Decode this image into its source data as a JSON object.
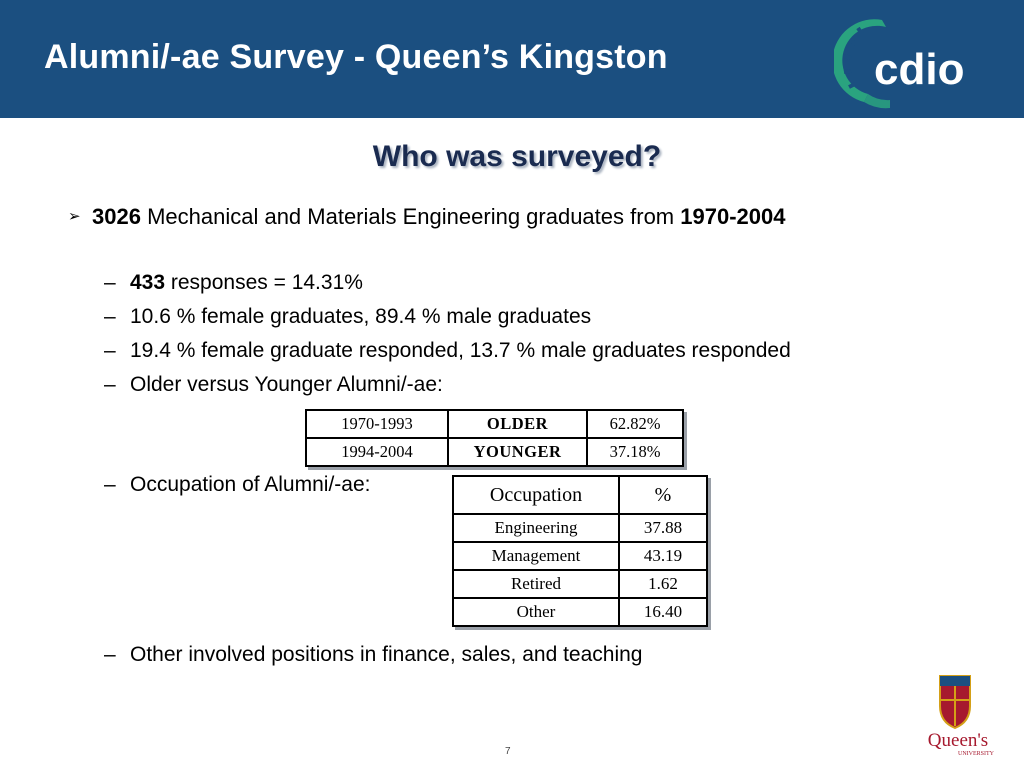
{
  "header": {
    "title": "Alumni/-ae Survey - Queen’s Kingston",
    "logo_text": "cdio"
  },
  "slide": {
    "subtitle": "Who was surveyed?",
    "main_bullet": {
      "count": "3026",
      "text": " Mechanical and Materials Engineering graduates from ",
      "years": "1970-2004"
    },
    "sub_bullets": [
      {
        "bold": "433",
        "text": " responses = 14.31%"
      },
      {
        "bold": "",
        "text": "10.6 % female graduates, 89.4 % male graduates"
      },
      {
        "bold": "",
        "text": "19.4 % female graduate responded, 13.7 % male graduates responded"
      },
      {
        "bold": "",
        "text": "Older versus Younger Alumni/-ae:"
      },
      {
        "bold": "",
        "text": "Occupation of Alumni/-ae:"
      },
      {
        "bold": "",
        "text": "Other involved positions in finance, sales, and teaching"
      }
    ],
    "dash": "–",
    "age_table": [
      {
        "years": "1970-1993",
        "group": "OLDER",
        "percent": "62.82%"
      },
      {
        "years": "1994-2004",
        "group": "YOUNGER",
        "percent": "37.18%"
      }
    ],
    "occupation_table": {
      "headers": [
        "Occupation",
        "%"
      ],
      "rows": [
        {
          "name": "Engineering",
          "value": "37.88"
        },
        {
          "name": "Management",
          "value": "43.19"
        },
        {
          "name": "Retired",
          "value": "1.62"
        },
        {
          "name": "Other",
          "value": "16.40"
        }
      ]
    },
    "page_number": "7",
    "footer_logo_text": "Queen's",
    "footer_logo_sub": "UNIVERSITY"
  },
  "colors": {
    "header_bg": "#1b4f80",
    "logo_green": "#2aa37f",
    "subtitle": "#1a2b50",
    "queens_red": "#a6192e"
  }
}
